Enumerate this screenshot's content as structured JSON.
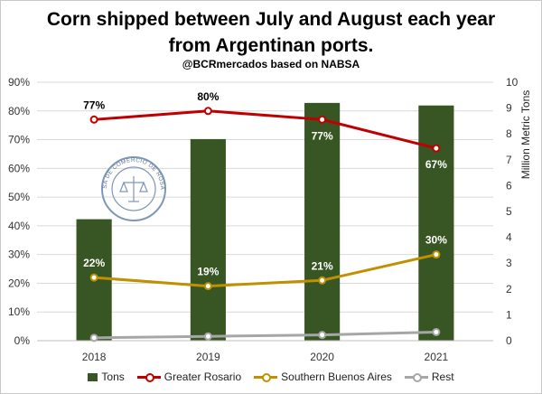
{
  "title_line1": "Corn shipped between July and August each year",
  "title_line2": "from Argentinan ports.",
  "subtitle": "@BCRmercados based on NABSA",
  "logo_text": "BOLSA DE COMERCIO DE ROSARIO",
  "colors": {
    "tons": "#375623",
    "greater_rosario": "#c00000",
    "southern_buenos_aires": "#bf9000",
    "rest": "#a6a6a6"
  },
  "chart_data": {
    "type": "bar+line",
    "categories": [
      "2018",
      "2019",
      "2020",
      "2021"
    ],
    "bar_series": {
      "name": "Tons",
      "axis": "right",
      "values": [
        4.7,
        7.8,
        9.2,
        9.1
      ]
    },
    "line_series": [
      {
        "name": "Greater Rosario",
        "values": [
          77,
          80,
          77,
          67
        ],
        "labels": [
          "77%",
          "80%",
          "77%",
          "67%"
        ]
      },
      {
        "name": "Southern Buenos Aires",
        "values": [
          22,
          19,
          21,
          30
        ],
        "labels": [
          "22%",
          "19%",
          "21%",
          "30%"
        ]
      },
      {
        "name": "Rest",
        "values": [
          1,
          1.5,
          2,
          3
        ],
        "labels": []
      }
    ],
    "y_left": {
      "min": 0,
      "max": 90,
      "step": 10,
      "ticks": [
        "0%",
        "10%",
        "20%",
        "30%",
        "40%",
        "50%",
        "60%",
        "70%",
        "80%",
        "90%"
      ]
    },
    "y_right": {
      "label": "Million Metric Tons",
      "min": 0,
      "max": 10,
      "step": 1,
      "ticks": [
        "0",
        "1",
        "2",
        "3",
        "4",
        "5",
        "6",
        "7",
        "8",
        "9",
        "10"
      ]
    },
    "legend": [
      "Tons",
      "Greater Rosario",
      "Southern Buenos Aires",
      "Rest"
    ]
  }
}
